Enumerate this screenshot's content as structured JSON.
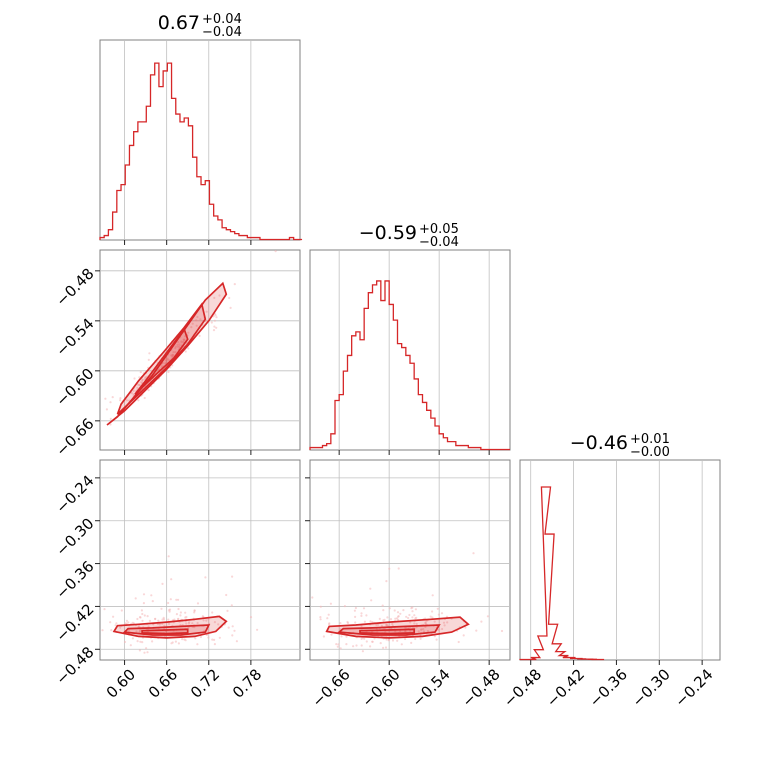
{
  "colors": {
    "series": "#d62728",
    "points": "#f4b6b8",
    "grid": "#c0c0c0",
    "frame": "#808080"
  },
  "chart_data": {
    "type": "corner",
    "grid": true,
    "parameters": [
      {
        "title_value": "0.67",
        "title_upper": "+0.04",
        "title_lower": "−0.04",
        "range": [
          0.565,
          0.85
        ],
        "ticks": [
          0.6,
          0.66,
          0.72,
          0.78
        ],
        "tick_labels": [
          "0.60",
          "0.66",
          "0.72",
          "0.78"
        ],
        "median": 0.67
      },
      {
        "title_value": "−0.59",
        "title_upper": "+0.05",
        "title_lower": "−0.04",
        "range": [
          -0.695,
          -0.455
        ],
        "ticks": [
          -0.66,
          -0.6,
          -0.54,
          -0.48
        ],
        "tick_labels": [
          "−0.66",
          "−0.60",
          "−0.54",
          "−0.48"
        ],
        "median": -0.59
      },
      {
        "title_value": "−0.46",
        "title_upper": "+0.01",
        "title_lower": "−0.00",
        "range": [
          -0.495,
          -0.215
        ],
        "ticks": [
          -0.48,
          -0.42,
          -0.36,
          -0.3,
          -0.24
        ],
        "tick_labels": [
          "−0.48",
          "−0.42",
          "−0.36",
          "−0.30",
          "−0.24"
        ],
        "median": -0.46
      }
    ],
    "histograms": [
      {
        "name": "param-1",
        "x": [
          0.565,
          0.571,
          0.577,
          0.583,
          0.589,
          0.595,
          0.601,
          0.607,
          0.613,
          0.619,
          0.625,
          0.631,
          0.637,
          0.643,
          0.649,
          0.655,
          0.661,
          0.667,
          0.673,
          0.679,
          0.685,
          0.691,
          0.697,
          0.703,
          0.709,
          0.715,
          0.721,
          0.727,
          0.733,
          0.739,
          0.745,
          0.751,
          0.757,
          0.763,
          0.769,
          0.775,
          0.781,
          0.787,
          0.793,
          0.799,
          0.805,
          0.811,
          0.817,
          0.823,
          0.829,
          0.835,
          0.841,
          0.847
        ],
        "density": [
          0.01,
          0.02,
          0.05,
          0.14,
          0.25,
          0.28,
          0.38,
          0.48,
          0.55,
          0.6,
          0.6,
          0.68,
          0.84,
          0.9,
          0.78,
          0.86,
          0.9,
          0.72,
          0.64,
          0.6,
          0.62,
          0.58,
          0.42,
          0.32,
          0.28,
          0.3,
          0.18,
          0.12,
          0.1,
          0.06,
          0.05,
          0.04,
          0.03,
          0.02,
          0.02,
          0.01,
          0.01,
          0.01,
          0.0,
          0.0,
          0.0,
          0.0,
          0.0,
          0.0,
          0.0,
          0.01,
          0.0,
          0.0
        ]
      },
      {
        "name": "param-2",
        "x": [
          -0.695,
          -0.69,
          -0.685,
          -0.68,
          -0.675,
          -0.67,
          -0.665,
          -0.66,
          -0.655,
          -0.65,
          -0.645,
          -0.64,
          -0.635,
          -0.63,
          -0.625,
          -0.62,
          -0.615,
          -0.61,
          -0.605,
          -0.6,
          -0.595,
          -0.59,
          -0.585,
          -0.58,
          -0.575,
          -0.57,
          -0.565,
          -0.56,
          -0.555,
          -0.55,
          -0.545,
          -0.54,
          -0.535,
          -0.53,
          -0.525,
          -0.52,
          -0.515,
          -0.51,
          -0.505,
          -0.5,
          -0.495,
          -0.49,
          -0.485,
          -0.48,
          -0.475,
          -0.47,
          -0.465,
          -0.46
        ],
        "density": [
          0.01,
          0.01,
          0.01,
          0.02,
          0.03,
          0.08,
          0.25,
          0.28,
          0.4,
          0.48,
          0.58,
          0.6,
          0.56,
          0.72,
          0.8,
          0.84,
          0.86,
          0.76,
          0.86,
          0.74,
          0.66,
          0.54,
          0.52,
          0.48,
          0.44,
          0.36,
          0.28,
          0.24,
          0.2,
          0.16,
          0.12,
          0.08,
          0.06,
          0.04,
          0.04,
          0.02,
          0.02,
          0.02,
          0.01,
          0.01,
          0.01,
          0.0,
          0.0,
          0.0,
          0.0,
          0.0,
          0.0,
          0.0
        ]
      },
      {
        "name": "param-3",
        "x": [
          -0.495,
          -0.49,
          -0.485,
          -0.48,
          -0.475,
          -0.47,
          -0.465,
          -0.46,
          -0.455,
          -0.45,
          -0.445,
          -0.44,
          -0.435,
          -0.43,
          -0.425,
          -0.42,
          -0.415,
          -0.41,
          -0.405,
          -0.4,
          -0.395,
          -0.39
        ],
        "density": [
          0.0,
          0.0,
          0.0,
          0.01,
          0.05,
          0.12,
          0.88,
          0.64,
          0.18,
          0.08,
          0.04,
          0.02,
          0.01,
          0.01,
          0.005,
          0.005,
          0.003,
          0.002,
          0.002,
          0.001,
          0.0,
          0.0
        ]
      }
    ],
    "contours": [
      {
        "x_param": 1,
        "y_param": 2,
        "relation": "strong positive correlation",
        "levels": [
          {
            "x": [
              0.575,
              0.6,
              0.63,
              0.66,
              0.69,
              0.72,
              0.745,
              0.74,
              0.715,
              0.69,
              0.665,
              0.64,
              0.615,
              0.59,
              0.575
            ],
            "y": [
              -0.665,
              -0.648,
              -0.623,
              -0.598,
              -0.57,
              -0.54,
              -0.508,
              -0.495,
              -0.515,
              -0.545,
              -0.575,
              -0.605,
              -0.63,
              -0.655,
              -0.665
            ]
          },
          {
            "x": [
              0.59,
              0.62,
              0.66,
              0.69,
              0.715,
              0.71,
              0.685,
              0.655,
              0.62,
              0.595,
              0.59
            ],
            "y": [
              -0.652,
              -0.628,
              -0.596,
              -0.568,
              -0.538,
              -0.52,
              -0.548,
              -0.578,
              -0.612,
              -0.64,
              -0.652
            ]
          },
          {
            "x": [
              0.615,
              0.645,
              0.67,
              0.69,
              0.685,
              0.66,
              0.63,
              0.615
            ],
            "y": [
              -0.628,
              -0.604,
              -0.585,
              -0.562,
              -0.55,
              -0.578,
              -0.612,
              -0.628
            ]
          }
        ]
      },
      {
        "x_param": 1,
        "y_param": 3,
        "relation": "weak",
        "levels": [
          {
            "x": [
              0.585,
              0.62,
              0.66,
              0.7,
              0.73,
              0.745,
              0.735,
              0.7,
              0.66,
              0.62,
              0.59,
              0.585
            ],
            "y": [
              -0.455,
              -0.462,
              -0.464,
              -0.462,
              -0.455,
              -0.441,
              -0.434,
              -0.438,
              -0.442,
              -0.445,
              -0.447,
              -0.455
            ]
          },
          {
            "x": [
              0.6,
              0.64,
              0.68,
              0.715,
              0.72,
              0.68,
              0.64,
              0.605,
              0.6
            ],
            "y": [
              -0.456,
              -0.46,
              -0.46,
              -0.456,
              -0.446,
              -0.448,
              -0.45,
              -0.451,
              -0.456
            ]
          },
          {
            "x": [
              0.625,
              0.66,
              0.69,
              0.69,
              0.66,
              0.625,
              0.625
            ],
            "y": [
              -0.457,
              -0.458,
              -0.457,
              -0.452,
              -0.453,
              -0.454,
              -0.457
            ]
          }
        ]
      },
      {
        "x_param": 2,
        "y_param": 3,
        "relation": "weak",
        "levels": [
          {
            "x": [
              -0.675,
              -0.64,
              -0.6,
              -0.56,
              -0.525,
              -0.505,
              -0.515,
              -0.55,
              -0.6,
              -0.64,
              -0.672,
              -0.675
            ],
            "y": [
              -0.455,
              -0.462,
              -0.464,
              -0.462,
              -0.456,
              -0.445,
              -0.435,
              -0.438,
              -0.442,
              -0.446,
              -0.448,
              -0.455
            ]
          },
          {
            "x": [
              -0.66,
              -0.62,
              -0.58,
              -0.545,
              -0.54,
              -0.58,
              -0.62,
              -0.655,
              -0.66
            ],
            "y": [
              -0.456,
              -0.46,
              -0.46,
              -0.456,
              -0.446,
              -0.448,
              -0.45,
              -0.451,
              -0.456
            ]
          },
          {
            "x": [
              -0.635,
              -0.6,
              -0.57,
              -0.57,
              -0.6,
              -0.635,
              -0.635
            ],
            "y": [
              -0.457,
              -0.458,
              -0.457,
              -0.452,
              -0.453,
              -0.454,
              -0.457
            ]
          }
        ]
      }
    ]
  }
}
